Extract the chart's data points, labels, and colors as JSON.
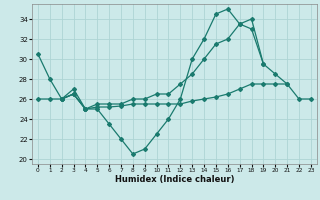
{
  "xlabel": "Humidex (Indice chaleur)",
  "background_color": "#cce9e9",
  "grid_color": "#aed4d4",
  "line_color": "#1a7a6e",
  "xlim": [
    -0.5,
    23.5
  ],
  "ylim": [
    19.5,
    35.5
  ],
  "xticks": [
    0,
    1,
    2,
    3,
    4,
    5,
    6,
    7,
    8,
    9,
    10,
    11,
    12,
    13,
    14,
    15,
    16,
    17,
    18,
    19,
    20,
    21,
    22,
    23
  ],
  "yticks": [
    20,
    22,
    24,
    26,
    28,
    30,
    32,
    34
  ],
  "s1_x": [
    0,
    1,
    2,
    3,
    4
  ],
  "s1_y": [
    30.5,
    28.0,
    26.0,
    26.5,
    25.0
  ],
  "s2_x": [
    2,
    3,
    4,
    5,
    6,
    7,
    8,
    9,
    10,
    11,
    12,
    13,
    14,
    15,
    16,
    17,
    18,
    19
  ],
  "s2_y": [
    26.0,
    26.5,
    25.0,
    25.0,
    23.5,
    22.0,
    20.5,
    21.0,
    22.5,
    24.0,
    26.0,
    30.0,
    32.0,
    34.5,
    35.0,
    33.5,
    34.0,
    29.5
  ],
  "s3_x": [
    2,
    3,
    4,
    5,
    6,
    7,
    8,
    9,
    10,
    11,
    12,
    13,
    14,
    15,
    16,
    17,
    18,
    19,
    20,
    21
  ],
  "s3_y": [
    26.0,
    27.0,
    25.0,
    25.5,
    25.5,
    25.5,
    26.0,
    26.0,
    26.5,
    26.5,
    27.5,
    28.5,
    30.0,
    31.5,
    32.0,
    33.5,
    33.0,
    29.5,
    28.5,
    27.5
  ],
  "s4_x": [
    0,
    1,
    2,
    3,
    4,
    5,
    6,
    7,
    8,
    9,
    10,
    11,
    12,
    13,
    14,
    15,
    16,
    17,
    18,
    19,
    20,
    21,
    22,
    23
  ],
  "s4_y": [
    26.0,
    26.0,
    26.0,
    26.5,
    25.0,
    25.2,
    25.2,
    25.3,
    25.5,
    25.5,
    25.5,
    25.5,
    25.5,
    25.8,
    26.0,
    26.2,
    26.5,
    27.0,
    27.5,
    27.5,
    27.5,
    27.5,
    26.0,
    26.0
  ]
}
